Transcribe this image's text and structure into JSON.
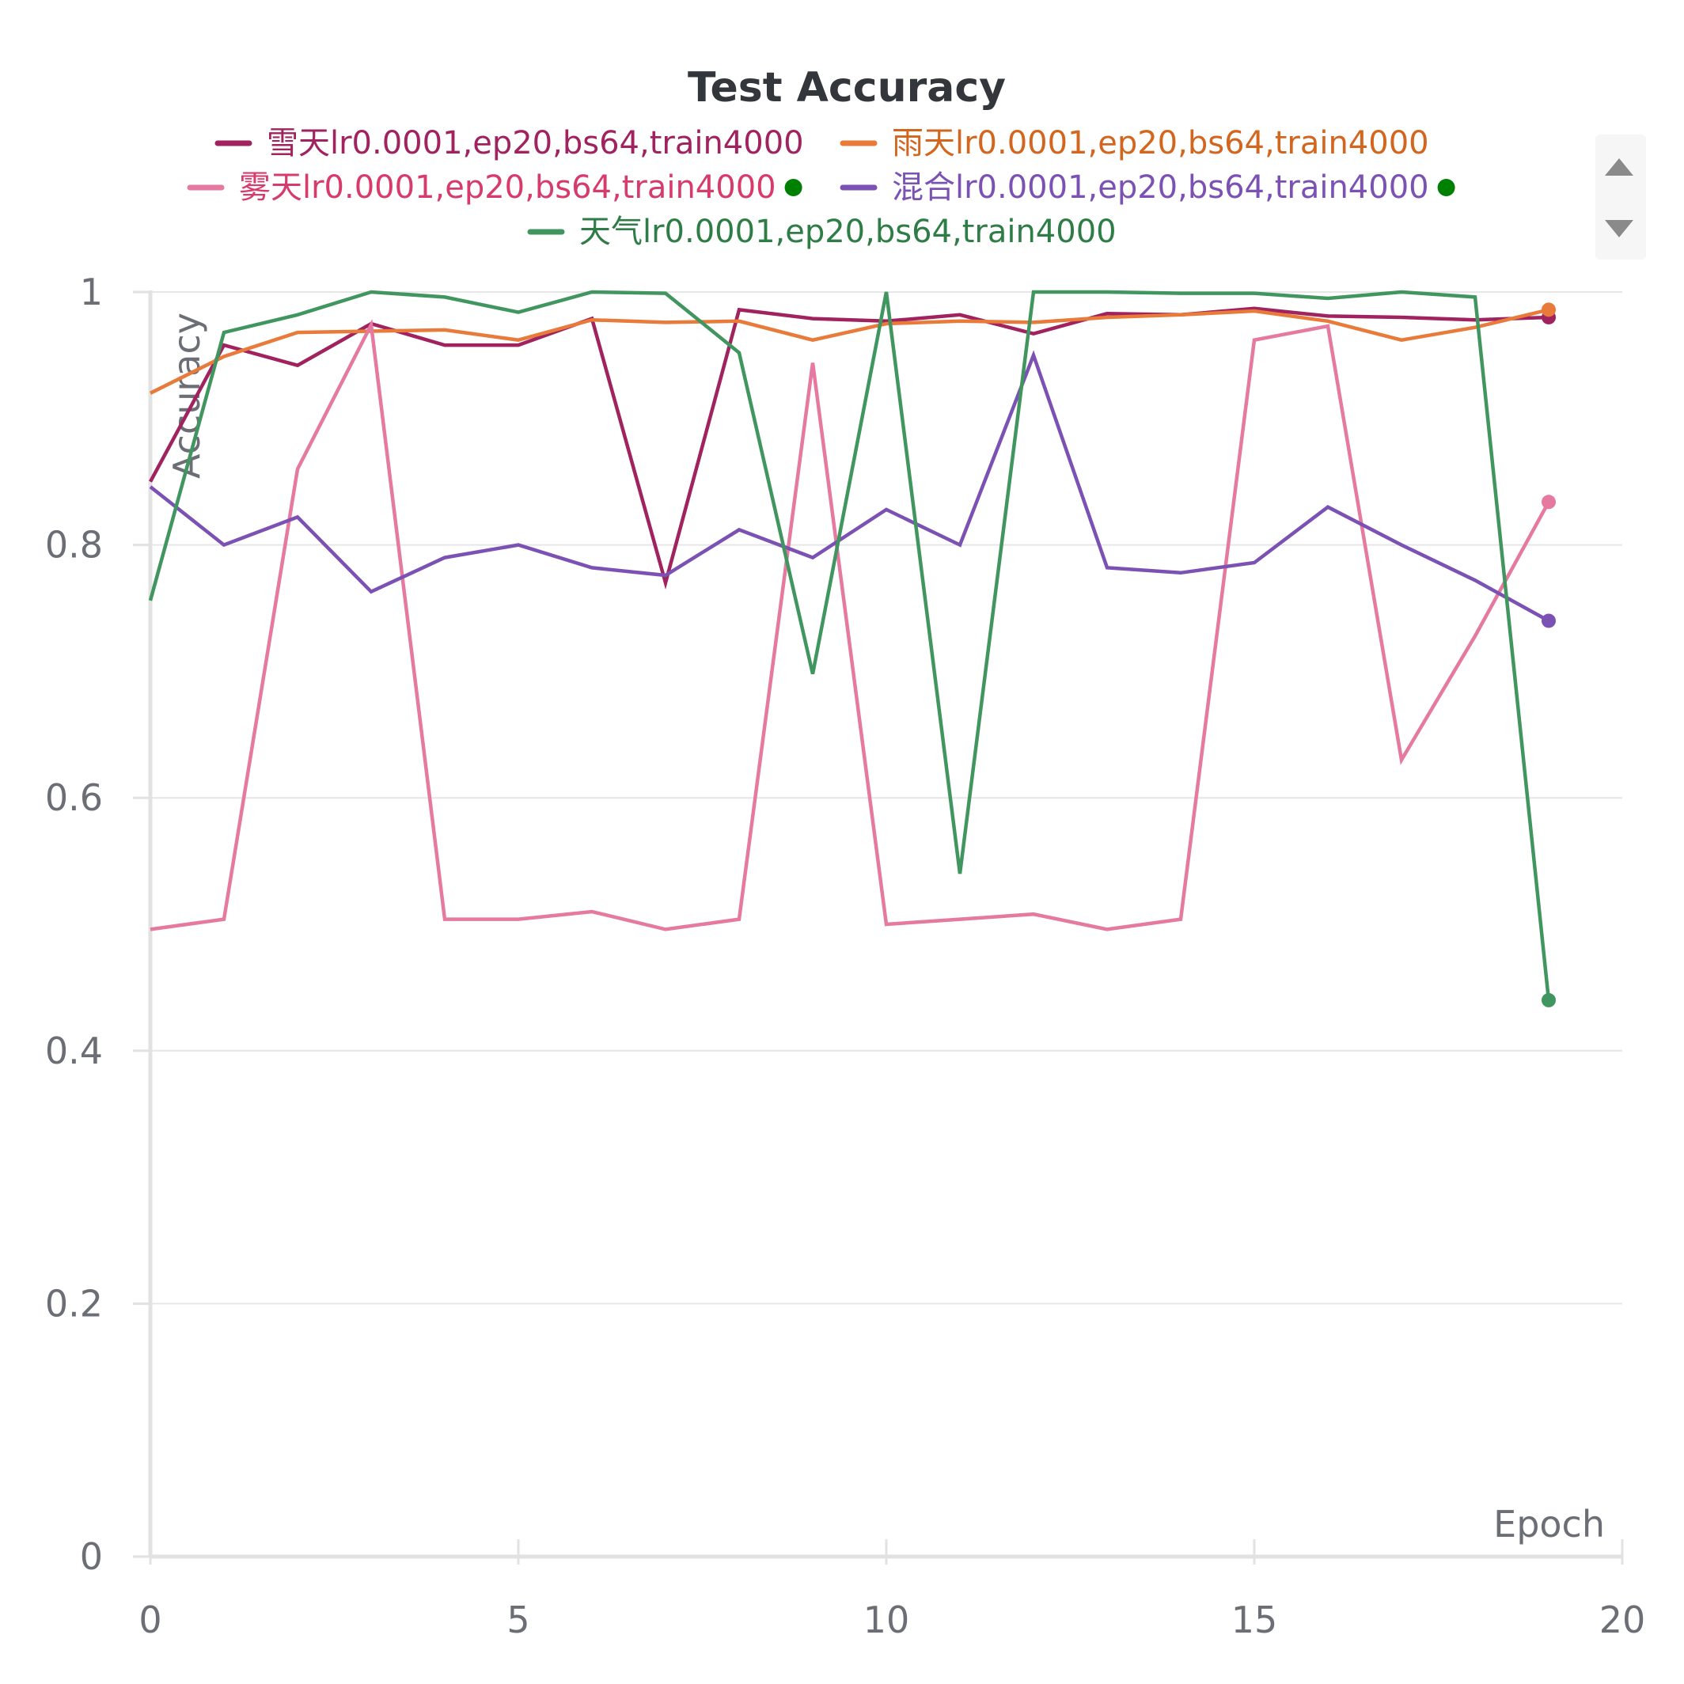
{
  "chart_data": {
    "type": "line",
    "title": "Test Accuracy",
    "xlabel": "Epoch",
    "ylabel": "Accuracy",
    "xlim": [
      0,
      20
    ],
    "ylim": [
      0,
      1
    ],
    "x_ticks": [
      "0",
      "5",
      "10",
      "15",
      "20"
    ],
    "y_ticks": [
      "0",
      "0.2",
      "0.4",
      "0.6",
      "0.8",
      "1"
    ],
    "grid": true,
    "legend_position": "top",
    "x": [
      0,
      1,
      2,
      3,
      4,
      5,
      6,
      7,
      8,
      9,
      10,
      11,
      12,
      13,
      14,
      15,
      16,
      17,
      18,
      19
    ],
    "series": [
      {
        "name": "雪天lr0.0001,ep20,bs64,train4000",
        "color": "#a0235f",
        "text_color": "#a0235f",
        "dot": false,
        "values": [
          0.85,
          0.958,
          0.942,
          0.975,
          0.958,
          0.958,
          0.979,
          0.77,
          0.986,
          0.979,
          0.977,
          0.982,
          0.967,
          0.983,
          0.982,
          0.987,
          0.981,
          0.98,
          0.978,
          0.98
        ]
      },
      {
        "name": "雨天lr0.0001,ep20,bs64,train4000",
        "color": "#e87a3a",
        "text_color": "#d3661f",
        "dot": false,
        "values": [
          0.92,
          0.949,
          0.968,
          0.969,
          0.97,
          0.962,
          0.978,
          0.976,
          0.977,
          0.962,
          0.975,
          0.977,
          0.976,
          0.98,
          0.982,
          0.985,
          0.977,
          0.962,
          0.972,
          0.986
        ]
      },
      {
        "name": "雾天lr0.0001,ep20,bs64,train4000",
        "color": "#e5799f",
        "text_color": "#d63b6c",
        "dot": true,
        "values": [
          0.496,
          0.504,
          0.86,
          0.974,
          0.504,
          0.504,
          0.51,
          0.496,
          0.504,
          0.944,
          0.5,
          0.504,
          0.508,
          0.496,
          0.504,
          0.962,
          0.973,
          0.63,
          0.728,
          0.834
        ]
      },
      {
        "name": "混合lr0.0001,ep20,bs64,train4000",
        "color": "#7b52b4",
        "text_color": "#7b52b4",
        "dot": true,
        "values": [
          0.846,
          0.8,
          0.822,
          0.763,
          0.79,
          0.8,
          0.782,
          0.776,
          0.812,
          0.79,
          0.828,
          0.8,
          0.95,
          0.782,
          0.778,
          0.786,
          0.83,
          0.8,
          0.772,
          0.74
        ]
      },
      {
        "name": "天气lr0.0001,ep20,bs64,train4000",
        "color": "#419660",
        "text_color": "#2f7d46",
        "dot": false,
        "values": [
          0.756,
          0.968,
          0.982,
          1.0,
          0.996,
          0.984,
          1.0,
          0.999,
          0.952,
          0.698,
          1.0,
          0.54,
          1.0,
          1.0,
          0.999,
          0.999,
          0.995,
          1.0,
          0.996,
          0.44
        ]
      }
    ]
  },
  "ui": {
    "legend_dot_color": "#008000",
    "scroll_up_icon": "triangle-up-icon",
    "scroll_down_icon": "triangle-down-icon"
  }
}
